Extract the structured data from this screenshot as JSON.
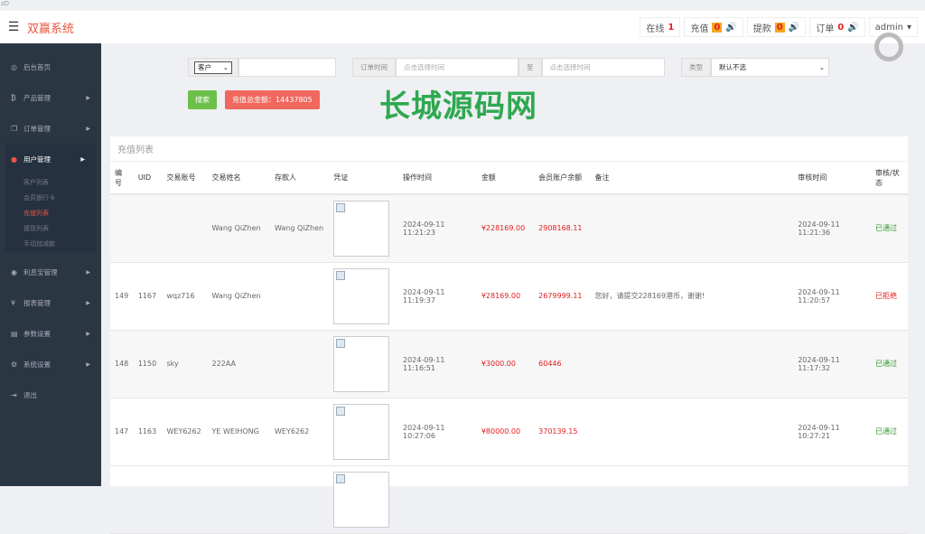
{
  "browser_strip": "zD",
  "header": {
    "brand": "双赢系统",
    "online_label": "在线",
    "online_count": "1",
    "recharge_label": "充值",
    "recharge_count": "0",
    "withdraw_label": "提款",
    "withdraw_count": "0",
    "order_label": "订单",
    "order_count": "0",
    "user": "admin"
  },
  "sidebar": {
    "items": [
      {
        "label": "后台首页",
        "icon": "dashboard-icon"
      },
      {
        "label": "产品管理",
        "icon": "bitcoin-icon"
      },
      {
        "label": "订单管理",
        "icon": "copy-icon"
      },
      {
        "label": "用户管理",
        "icon": "user-icon",
        "subs": [
          "客户列表",
          "会员银行卡",
          "充值列表",
          "提现列表",
          "手动加减款"
        ]
      },
      {
        "label": "利息宝管理",
        "icon": "clock-icon"
      },
      {
        "label": "报表管理",
        "icon": "yen-icon"
      },
      {
        "label": "参数设置",
        "icon": "file-icon"
      },
      {
        "label": "系统设置",
        "icon": "gears-icon"
      },
      {
        "label": "退出",
        "icon": "logout-icon"
      }
    ]
  },
  "filters": {
    "select_value": "客户",
    "order_time_label": "订单时间",
    "start_placeholder": "点击选择时间",
    "to_label": "至",
    "end_placeholder": "点击选择时间",
    "type_label": "类型",
    "type_value": "默认不选",
    "search_button": "搜索",
    "total_label": "充值总金额：14437805"
  },
  "panel": {
    "title": "充值列表",
    "columns": [
      "编号",
      "UID",
      "交易账号",
      "交易姓名",
      "存款人",
      "凭证",
      "操作时间",
      "金额",
      "会员账户余额",
      "备注",
      "审核时间",
      "审核/状态"
    ],
    "rows": [
      {
        "id": "",
        "uid": "",
        "account": "",
        "name": "Wang QiZhen",
        "depositor": "Wang QiZhen",
        "time": "2024-09-11 11:21:23",
        "amount": "¥228169.00",
        "balance": "2908168.11",
        "note": "",
        "audit_time": "2024-09-11 11:21:36",
        "status": "已通过",
        "status_type": "ok"
      },
      {
        "id": "149",
        "uid": "1167",
        "account": "wqz716",
        "name": "Wang QiZhen",
        "depositor": "",
        "time": "2024-09-11 11:19:37",
        "amount": "¥28169.00",
        "balance": "2679999.11",
        "note": "您好，请提交228169港币，谢谢!",
        "audit_time": "2024-09-11 11:20:57",
        "status": "已拒绝",
        "status_type": "no"
      },
      {
        "id": "148",
        "uid": "1150",
        "account": "sky",
        "name": "222AA",
        "depositor": "",
        "time": "2024-09-11 11:16:51",
        "amount": "¥3000.00",
        "balance": "60446",
        "note": "",
        "audit_time": "2024-09-11 11:17:32",
        "status": "已通过",
        "status_type": "ok"
      },
      {
        "id": "147",
        "uid": "1163",
        "account": "WEY6262",
        "name": "YE WEIHONG",
        "depositor": "WEY6262",
        "time": "2024-09-11 10:27:06",
        "amount": "¥80000.00",
        "balance": "370139.15",
        "note": "",
        "audit_time": "2024-09-11 10:27:21",
        "status": "已通过",
        "status_type": "ok"
      }
    ]
  },
  "watermark": "长城源码网"
}
